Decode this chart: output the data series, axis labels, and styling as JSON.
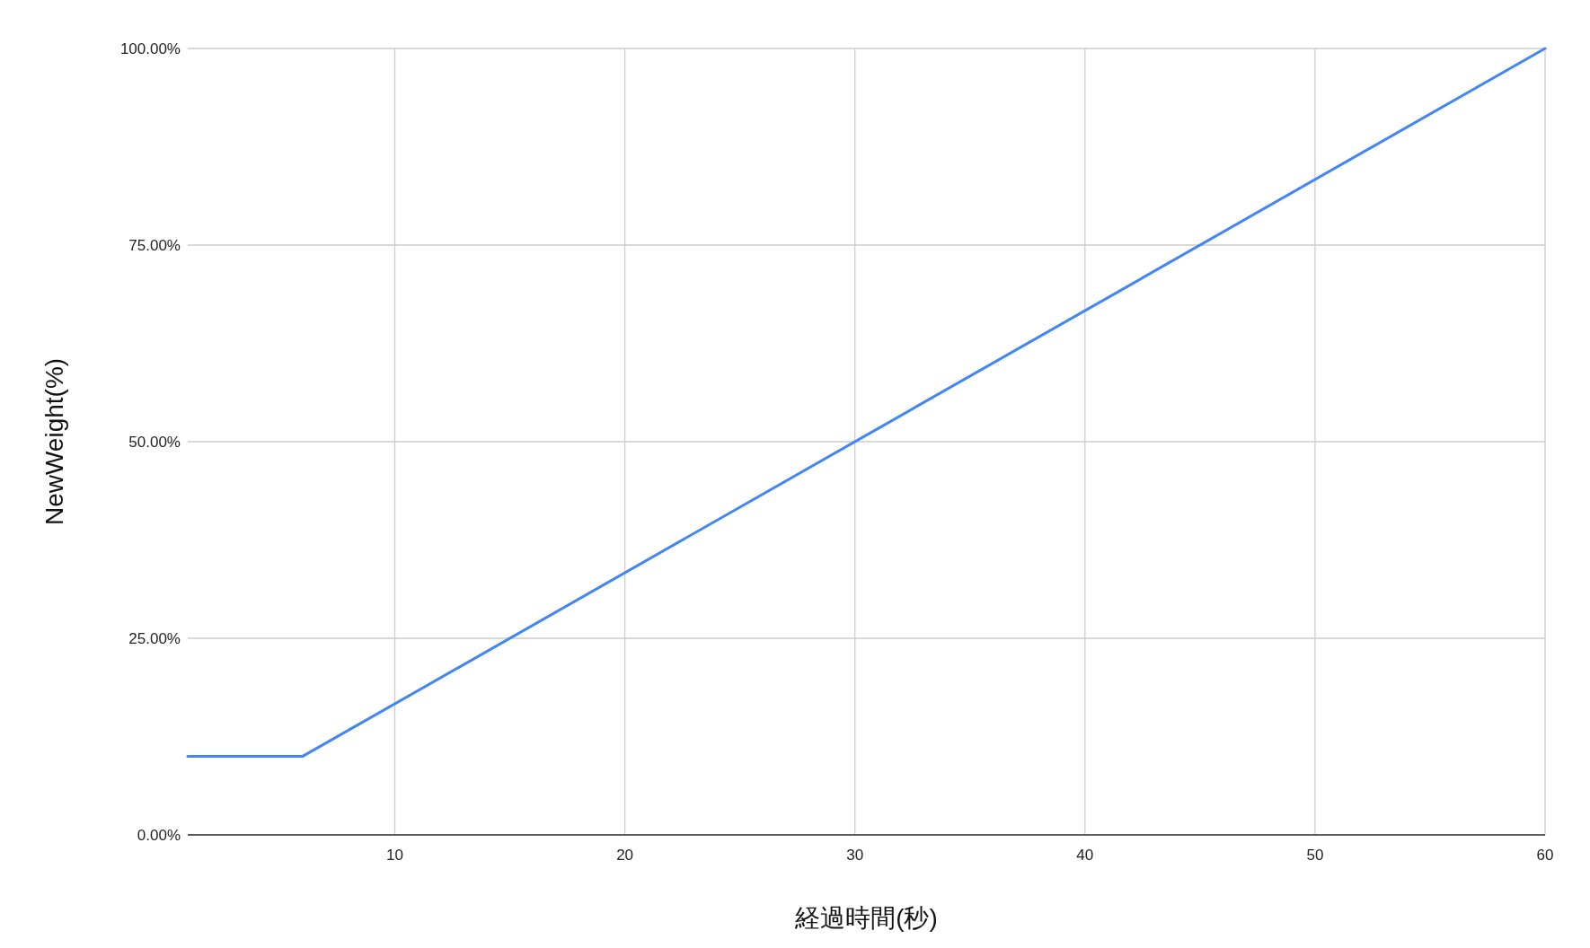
{
  "chart_data": {
    "type": "line",
    "xlabel": "経過時間(秒)",
    "ylabel": "NewWeight(%)",
    "x": [
      1,
      6,
      60
    ],
    "series": [
      {
        "color": "#4285f4",
        "values": [
          10,
          10,
          100
        ]
      }
    ],
    "xlim": [
      1,
      60
    ],
    "xticks": [
      10,
      20,
      30,
      40,
      50,
      60
    ],
    "ylim": [
      0,
      100
    ],
    "yticks": [
      {
        "value": 0,
        "label": "0.00%"
      },
      {
        "value": 25,
        "label": "25.00%"
      },
      {
        "value": 50,
        "label": "50.00%"
      },
      {
        "value": 75,
        "label": "75.00%"
      },
      {
        "value": 100,
        "label": "100.00%"
      }
    ],
    "grid": true
  }
}
